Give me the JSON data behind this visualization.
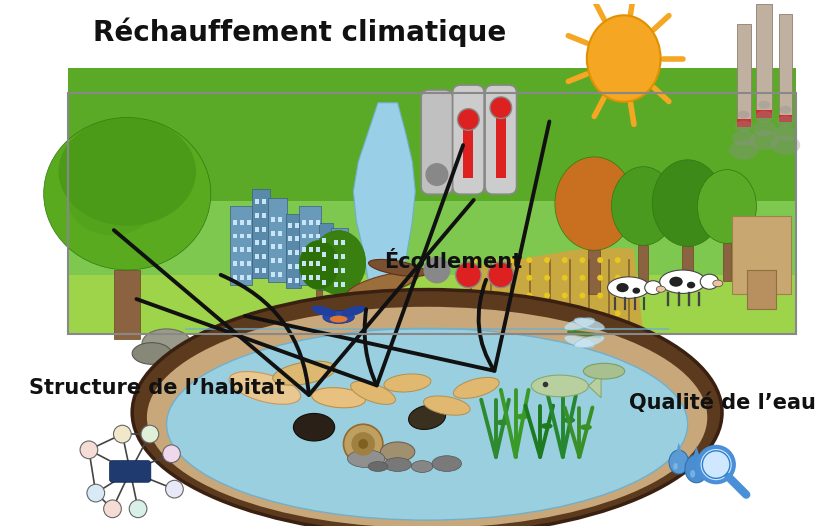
{
  "title": "Réchauffement climatique",
  "label_ecoulement": "Écoulement",
  "label_habitat": "Structure de l’habitat",
  "label_qualite": "Qualité de l’eau",
  "bg_color": "#ffffff",
  "sun_color": "#f5a623",
  "sun_ray_color": "#f5a623",
  "arrow_color": "#111111",
  "text_color": "#111111",
  "title_fontsize": 20,
  "label_fontsize": 15,
  "ecoulement_fontsize": 15,
  "node_center_color": "#1e3a6e",
  "node_outer_colors": [
    "#f5ddd5",
    "#d8eaf5",
    "#f0e8c8",
    "#e0efd8",
    "#f0d8ec",
    "#e8e8f8",
    "#d8f0e8",
    "#f5ddd5"
  ],
  "drop_color": "#5b9bd5",
  "magnifier_color": "#4a90d9"
}
